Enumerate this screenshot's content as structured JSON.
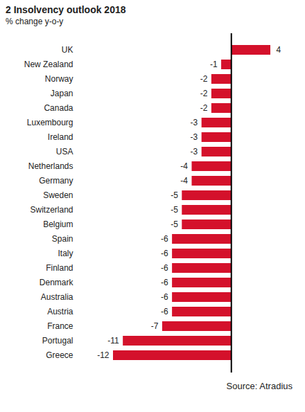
{
  "chart_data": {
    "type": "bar",
    "title": "2 Insolvency outlook 2018",
    "subtitle": "% change y-o-y",
    "caption": "Source: Atradius",
    "categories": [
      "UK",
      "New Zealand",
      "Norway",
      "Japan",
      "Canada",
      "Luxembourg",
      "Ireland",
      "USA",
      "Netherlands",
      "Germany",
      "Sweden",
      "Switzerland",
      "Belgium",
      "Spain",
      "Italy",
      "Finland",
      "Denmark",
      "Australia",
      "Austria",
      "France",
      "Portugal",
      "Greece"
    ],
    "values": [
      4,
      -1,
      -2,
      -2,
      -2,
      -3,
      -3,
      -3,
      -4,
      -4,
      -5,
      -5,
      -5,
      -6,
      -6,
      -6,
      -6,
      -6,
      -6,
      -7,
      -11,
      -12
    ],
    "color": "#d4112b",
    "xlim": [
      -12,
      4
    ],
    "xticks": [
      0
    ],
    "orientation": "horizontal",
    "data_labels": true,
    "tick_labels": "y",
    "grid": false
  }
}
